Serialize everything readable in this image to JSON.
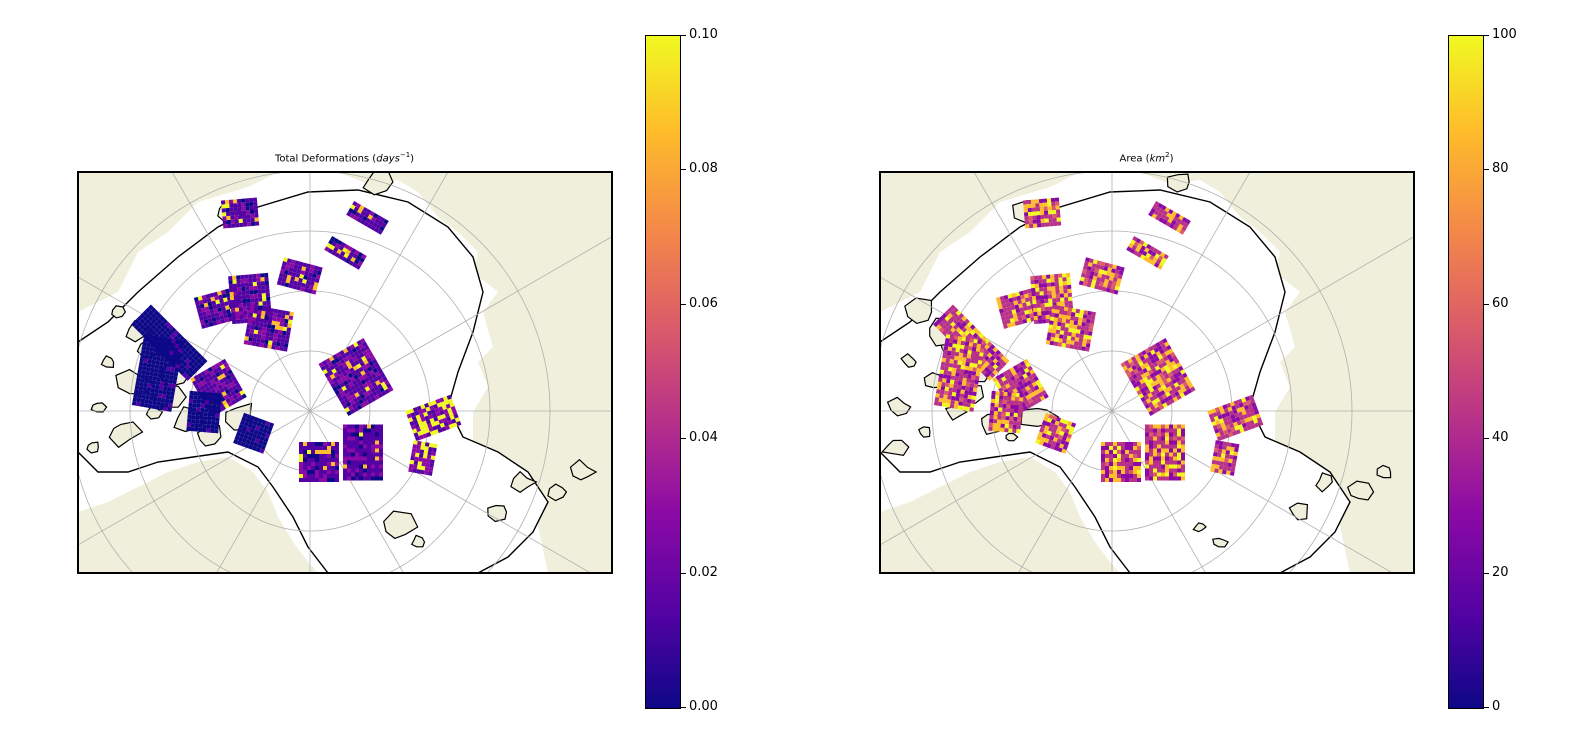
{
  "colormap": [
    "#0d0887",
    "#5302a3",
    "#8b0aa5",
    "#b83289",
    "#db5c68",
    "#f48849",
    "#febd2a",
    "#f0f921"
  ],
  "colors": {
    "land": "#efefdb",
    "ocean": "#ffffff",
    "coast": "#000000",
    "grid": "#b0b0b0"
  },
  "panels": [
    {
      "id": "deformation",
      "title_main": "Total Deformations (",
      "title_math": "days",
      "title_sup": "−1",
      "title_end": ")",
      "colorbar": {
        "min": 0.0,
        "max": 0.1,
        "tick_labels": [
          "0.00",
          "0.02",
          "0.04",
          "0.06",
          "0.08",
          "0.10"
        ]
      },
      "scheme": "deformation"
    },
    {
      "id": "area",
      "title_main": "Area (",
      "title_math": "km",
      "title_sup": "2",
      "title_end": ")",
      "colorbar": {
        "min": 0,
        "max": 100,
        "tick_labels": [
          "0",
          "20",
          "40",
          "60",
          "80",
          "100"
        ]
      },
      "scheme": "area"
    }
  ]
}
